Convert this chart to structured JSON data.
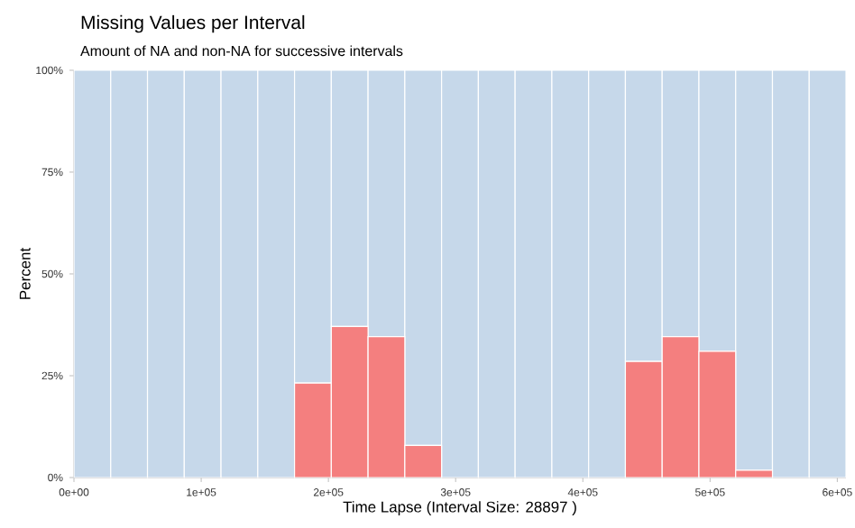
{
  "chart_data": {
    "type": "bar",
    "stacked": true,
    "title": "Missing Values per Interval",
    "subtitle": "Amount of NA and non-NA for successive intervals",
    "xlabel": "Time Lapse (Interval Size: 28897 )",
    "ylabel": "Percent",
    "x": [
      14448.5,
      43345.5,
      72242.5,
      101139.5,
      130036.5,
      158933.5,
      187830.5,
      216727.5,
      245624.5,
      274521.5,
      303418.5,
      332315.5,
      361212.5,
      390109.5,
      419006.5,
      447903.5,
      476800.5,
      505697.5,
      534594.5,
      563491.5,
      592388.5
    ],
    "series": [
      {
        "color": "#f47f7f",
        "values": [
          0,
          0,
          0,
          0,
          0,
          0,
          23.2,
          37.1,
          34.6,
          7.9,
          0,
          0,
          0,
          0,
          0,
          28.5,
          34.6,
          31.0,
          1.8,
          0,
          0
        ]
      },
      {
        "color": "#c6d8ea",
        "values": [
          100,
          100,
          100,
          100,
          100,
          100,
          76.8,
          62.9,
          65.4,
          92.1,
          100,
          100,
          100,
          100,
          100,
          71.5,
          65.4,
          69.0,
          98.2,
          100,
          100
        ]
      }
    ],
    "xlim": [
      0,
      606837
    ],
    "ylim": [
      0,
      100
    ],
    "xticks": [
      {
        "value": 0,
        "label": "0e+00"
      },
      {
        "value": 100000,
        "label": "1e+05"
      },
      {
        "value": 200000,
        "label": "2e+05"
      },
      {
        "value": 300000,
        "label": "3e+05"
      },
      {
        "value": 400000,
        "label": "4e+05"
      },
      {
        "value": 500000,
        "label": "5e+05"
      },
      {
        "value": 600000,
        "label": "6e+05"
      }
    ],
    "yticks": [
      {
        "value": 0,
        "label": "0%"
      },
      {
        "value": 25,
        "label": "25%"
      },
      {
        "value": 50,
        "label": "50%"
      },
      {
        "value": 75,
        "label": "75%"
      },
      {
        "value": 100,
        "label": "100%"
      }
    ]
  }
}
